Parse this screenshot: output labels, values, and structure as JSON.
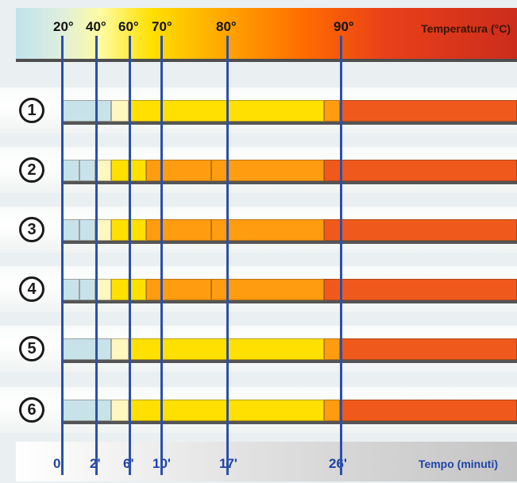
{
  "temperature_axis": {
    "title": "Temperatura (°C)",
    "labels": [
      "20°",
      "40°",
      "60°",
      "70°",
      "80°",
      "90°"
    ]
  },
  "time_axis": {
    "title": "Tempo (minuti)",
    "labels": [
      "0'",
      "2'",
      "6'",
      "10'",
      "17'",
      "26'"
    ]
  },
  "rows": [
    {
      "number": "1",
      "segments": [
        "tan",
        "beige",
        "yellow",
        "orange",
        "deep-orange"
      ]
    },
    {
      "number": "2",
      "segments": [
        "tan",
        "tan",
        "beige",
        "yellow",
        "yellow",
        "orange",
        "orange",
        "deep-orange"
      ]
    },
    {
      "number": "3",
      "segments": [
        "tan",
        "tan",
        "beige",
        "yellow",
        "yellow",
        "orange",
        "orange",
        "deep-orange"
      ]
    },
    {
      "number": "4",
      "segments": [
        "tan",
        "tan",
        "beige",
        "yellow",
        "yellow",
        "orange",
        "orange",
        "deep-orange"
      ]
    },
    {
      "number": "5",
      "segments": [
        "tan",
        "beige",
        "yellow",
        "orange",
        "deep-orange"
      ]
    },
    {
      "number": "6",
      "segments": [
        "tan",
        "beige",
        "yellow",
        "orange",
        "deep-orange"
      ]
    }
  ],
  "colors": {
    "tan": "#c8e2ea",
    "beige": "#fff6c0",
    "yellow": "#ffe000",
    "orange": "#ff9c10",
    "deep-orange": "#ef5a1c",
    "marker_line": "#2a4fae"
  }
}
